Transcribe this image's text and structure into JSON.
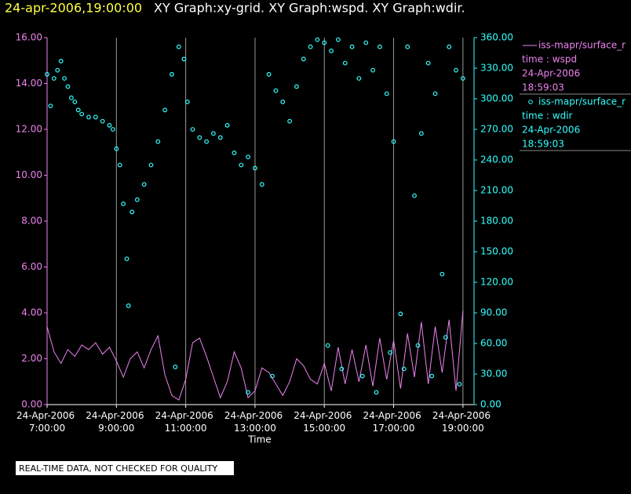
{
  "chart_data": {
    "type": "line",
    "title_time": "24-apr-2006,19:00:00",
    "title": "XY Graph:xy-grid.  XY Graph:wspd.  XY Graph:wdir.",
    "x_label": "Time",
    "note": "REAL-TIME DATA, NOT CHECKED FOR QUALITY",
    "xlim": [
      7,
      19.32
    ],
    "xticks": [
      {
        "value": 7,
        "label": "24-Apr-2006 7:00:00"
      },
      {
        "value": 9,
        "label": "24-Apr-2006 9:00:00"
      },
      {
        "value": 11,
        "label": "24-Apr-2006 11:00:00"
      },
      {
        "value": 13,
        "label": "24-Apr-2006 13:00:00"
      },
      {
        "value": 15,
        "label": "24-Apr-2006 15:00:00"
      },
      {
        "value": 17,
        "label": "24-Apr-2006 17:00:00"
      },
      {
        "value": 19,
        "label": "24-Apr-2006 19:00:00"
      }
    ],
    "grid": true,
    "ylim": [
      0,
      16
    ],
    "yticks": [
      {
        "value": 0,
        "label": "0.00"
      },
      {
        "value": 2,
        "label": "2.00"
      },
      {
        "value": 4,
        "label": "4.00"
      },
      {
        "value": 6,
        "label": "6.00"
      },
      {
        "value": 8,
        "label": "8.00"
      },
      {
        "value": 10,
        "label": "10.00"
      },
      {
        "value": 12,
        "label": "12.00"
      },
      {
        "value": 14,
        "label": "14.00"
      },
      {
        "value": 16,
        "label": "16.00"
      }
    ],
    "y2lim": [
      0,
      360
    ],
    "y2ticks": [
      {
        "value": 0,
        "label": "0.00"
      },
      {
        "value": 30,
        "label": "30.00"
      },
      {
        "value": 60,
        "label": "60.00"
      },
      {
        "value": 90,
        "label": "90.00"
      },
      {
        "value": 120,
        "label": "120.00"
      },
      {
        "value": 150,
        "label": "150.00"
      },
      {
        "value": 180,
        "label": "180.00"
      },
      {
        "value": 210,
        "label": "210.00"
      },
      {
        "value": 240,
        "label": "240.00"
      },
      {
        "value": 270,
        "label": "270.00"
      },
      {
        "value": 300,
        "label": "300.00"
      },
      {
        "value": 330,
        "label": "330.00"
      },
      {
        "value": 360,
        "label": "360.00"
      }
    ],
    "series": [
      {
        "name": "iss-mapr/surface_r",
        "legend_lines": [
          "time : wspd",
          "24-Apr-2006",
          "18:59:03"
        ],
        "color": "#ee82ee",
        "type": "line",
        "x": [
          7,
          7.2,
          7.4,
          7.6,
          7.8,
          8,
          8.2,
          8.4,
          8.6,
          8.8,
          9,
          9.2,
          9.4,
          9.6,
          9.8,
          10,
          10.2,
          10.4,
          10.6,
          10.8,
          11,
          11.2,
          11.4,
          11.6,
          11.8,
          12,
          12.2,
          12.4,
          12.6,
          12.8,
          13,
          13.2,
          13.4,
          13.6,
          13.8,
          14,
          14.2,
          14.4,
          14.6,
          14.8,
          15,
          15.2,
          15.4,
          15.6,
          15.8,
          16,
          16.2,
          16.4,
          16.6,
          16.8,
          17,
          17.2,
          17.4,
          17.6,
          17.8,
          18,
          18.2,
          18.4,
          18.6,
          18.8,
          19
        ],
        "values": [
          3.4,
          2.3,
          1.8,
          2.4,
          2.1,
          2.6,
          2.4,
          2.7,
          2.2,
          2.5,
          1.9,
          1.2,
          2,
          2.3,
          1.6,
          2.4,
          3,
          1.3,
          0.4,
          0.2,
          1.1,
          2.7,
          2.9,
          2.1,
          1.2,
          0.3,
          1,
          2.3,
          1.6,
          0.3,
          0.6,
          1.6,
          1.4,
          0.9,
          0.4,
          1,
          2,
          1.7,
          1.1,
          0.9,
          1.8,
          0.6,
          2.5,
          0.9,
          2.4,
          1,
          2.6,
          0.8,
          2.9,
          1.1,
          2.8,
          0.7,
          3.1,
          1.2,
          3.6,
          0.9,
          3.4,
          1.4,
          3.7,
          0.6,
          4.1
        ]
      },
      {
        "name": "iss-mapr/surface_r",
        "legend_lines": [
          "time : wdir",
          "24-Apr-2006",
          "18:59:03"
        ],
        "color": "#33ffff",
        "type": "scatter",
        "axis": "y2",
        "x": [
          7,
          7.1,
          7.2,
          7.3,
          7.4,
          7.5,
          7.6,
          7.7,
          7.8,
          7.9,
          8,
          8.2,
          8.4,
          8.6,
          8.8,
          8.9,
          9,
          9.1,
          9.2,
          9.3,
          9.35,
          9.45,
          9.6,
          9.8,
          10,
          10.2,
          10.4,
          10.6,
          10.7,
          10.8,
          10.95,
          11.05,
          11.2,
          11.4,
          11.6,
          11.8,
          12,
          12.2,
          12.4,
          12.6,
          12.8,
          12.8,
          13,
          13.2,
          13.4,
          13.5,
          13.6,
          13.8,
          14,
          14.2,
          14.4,
          14.6,
          14.8,
          15,
          15.1,
          15.2,
          15.4,
          15.5,
          15.6,
          15.8,
          16,
          16.1,
          16.2,
          16.4,
          16.5,
          16.6,
          16.8,
          16.9,
          17,
          17.2,
          17.3,
          17.4,
          17.6,
          17.7,
          17.8,
          18,
          18.1,
          18.2,
          18.4,
          18.5,
          18.6,
          18.8,
          18.9,
          19
        ],
        "values": [
          324,
          293,
          320,
          328,
          337,
          320,
          312,
          301,
          297,
          289,
          285,
          282,
          282,
          278,
          274,
          270,
          251,
          235,
          197,
          143,
          97,
          189,
          201,
          216,
          235,
          258,
          289,
          324,
          37,
          351,
          339,
          297,
          270,
          262,
          258,
          266,
          262,
          274,
          247,
          235,
          243,
          12,
          232,
          216,
          324,
          28,
          308,
          297,
          278,
          312,
          339,
          351,
          358,
          355,
          58,
          347,
          358,
          35,
          335,
          351,
          320,
          28,
          355,
          328,
          12,
          351,
          305,
          51,
          258,
          89,
          35,
          351,
          205,
          58,
          266,
          335,
          28,
          305,
          128,
          66,
          351,
          328,
          20,
          320
        ]
      }
    ]
  }
}
